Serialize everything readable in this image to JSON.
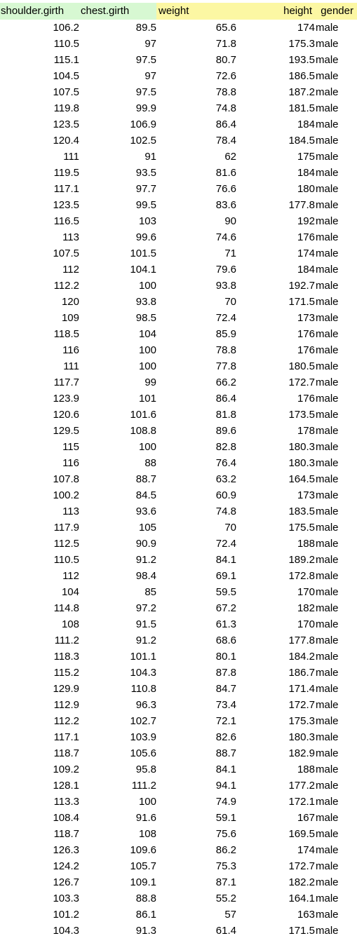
{
  "table": {
    "headers": [
      "shoulder.girth",
      "chest.girth",
      "weight",
      "height",
      "gender"
    ],
    "rows": [
      [
        "106.2",
        "89.5",
        "65.6",
        "174",
        "male"
      ],
      [
        "110.5",
        "97",
        "71.8",
        "175.3",
        "male"
      ],
      [
        "115.1",
        "97.5",
        "80.7",
        "193.5",
        "male"
      ],
      [
        "104.5",
        "97",
        "72.6",
        "186.5",
        "male"
      ],
      [
        "107.5",
        "97.5",
        "78.8",
        "187.2",
        "male"
      ],
      [
        "119.8",
        "99.9",
        "74.8",
        "181.5",
        "male"
      ],
      [
        "123.5",
        "106.9",
        "86.4",
        "184",
        "male"
      ],
      [
        "120.4",
        "102.5",
        "78.4",
        "184.5",
        "male"
      ],
      [
        "111",
        "91",
        "62",
        "175",
        "male"
      ],
      [
        "119.5",
        "93.5",
        "81.6",
        "184",
        "male"
      ],
      [
        "117.1",
        "97.7",
        "76.6",
        "180",
        "male"
      ],
      [
        "123.5",
        "99.5",
        "83.6",
        "177.8",
        "male"
      ],
      [
        "116.5",
        "103",
        "90",
        "192",
        "male"
      ],
      [
        "113",
        "99.6",
        "74.6",
        "176",
        "male"
      ],
      [
        "107.5",
        "101.5",
        "71",
        "174",
        "male"
      ],
      [
        "112",
        "104.1",
        "79.6",
        "184",
        "male"
      ],
      [
        "112.2",
        "100",
        "93.8",
        "192.7",
        "male"
      ],
      [
        "120",
        "93.8",
        "70",
        "171.5",
        "male"
      ],
      [
        "109",
        "98.5",
        "72.4",
        "173",
        "male"
      ],
      [
        "118.5",
        "104",
        "85.9",
        "176",
        "male"
      ],
      [
        "116",
        "100",
        "78.8",
        "176",
        "male"
      ],
      [
        "111",
        "100",
        "77.8",
        "180.5",
        "male"
      ],
      [
        "117.7",
        "99",
        "66.2",
        "172.7",
        "male"
      ],
      [
        "123.9",
        "101",
        "86.4",
        "176",
        "male"
      ],
      [
        "120.6",
        "101.6",
        "81.8",
        "173.5",
        "male"
      ],
      [
        "129.5",
        "108.8",
        "89.6",
        "178",
        "male"
      ],
      [
        "115",
        "100",
        "82.8",
        "180.3",
        "male"
      ],
      [
        "116",
        "88",
        "76.4",
        "180.3",
        "male"
      ],
      [
        "107.8",
        "88.7",
        "63.2",
        "164.5",
        "male"
      ],
      [
        "100.2",
        "84.5",
        "60.9",
        "173",
        "male"
      ],
      [
        "113",
        "93.6",
        "74.8",
        "183.5",
        "male"
      ],
      [
        "117.9",
        "105",
        "70",
        "175.5",
        "male"
      ],
      [
        "112.5",
        "90.9",
        "72.4",
        "188",
        "male"
      ],
      [
        "110.5",
        "91.2",
        "84.1",
        "189.2",
        "male"
      ],
      [
        "112",
        "98.4",
        "69.1",
        "172.8",
        "male"
      ],
      [
        "104",
        "85",
        "59.5",
        "170",
        "male"
      ],
      [
        "114.8",
        "97.2",
        "67.2",
        "182",
        "male"
      ],
      [
        "108",
        "91.5",
        "61.3",
        "170",
        "male"
      ],
      [
        "111.2",
        "91.2",
        "68.6",
        "177.8",
        "male"
      ],
      [
        "118.3",
        "101.1",
        "80.1",
        "184.2",
        "male"
      ],
      [
        "115.2",
        "104.3",
        "87.8",
        "186.7",
        "male"
      ],
      [
        "129.9",
        "110.8",
        "84.7",
        "171.4",
        "male"
      ],
      [
        "112.9",
        "96.3",
        "73.4",
        "172.7",
        "male"
      ],
      [
        "112.2",
        "102.7",
        "72.1",
        "175.3",
        "male"
      ],
      [
        "117.1",
        "103.9",
        "82.6",
        "180.3",
        "male"
      ],
      [
        "118.7",
        "105.6",
        "88.7",
        "182.9",
        "male"
      ],
      [
        "109.2",
        "95.8",
        "84.1",
        "188",
        "male"
      ],
      [
        "128.1",
        "111.2",
        "94.1",
        "177.2",
        "male"
      ],
      [
        "113.3",
        "100",
        "74.9",
        "172.1",
        "male"
      ],
      [
        "108.4",
        "91.6",
        "59.1",
        "167",
        "male"
      ],
      [
        "118.7",
        "108",
        "75.6",
        "169.5",
        "male"
      ],
      [
        "126.3",
        "109.6",
        "86.2",
        "174",
        "male"
      ],
      [
        "124.2",
        "105.7",
        "75.3",
        "172.7",
        "male"
      ],
      [
        "126.7",
        "109.1",
        "87.1",
        "182.2",
        "male"
      ],
      [
        "103.3",
        "88.8",
        "55.2",
        "164.1",
        "male"
      ],
      [
        "101.2",
        "86.1",
        "57",
        "163",
        "male"
      ],
      [
        "104.3",
        "91.3",
        "61.4",
        "171.5",
        "male"
      ]
    ]
  },
  "colors": {
    "header_green": "#d7f8d2",
    "header_yellow": "#fcf7a3"
  }
}
